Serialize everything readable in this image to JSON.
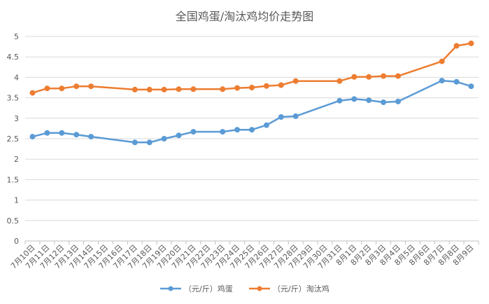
{
  "chart_data": {
    "type": "line",
    "title": "全国鸡蛋/淘汰鸡均价走势图",
    "categories": [
      "7月10日",
      "7月11日",
      "7月12日",
      "7月13日",
      "7月14日",
      "7月15日",
      "7月16日",
      "7月17日",
      "7月18日",
      "7月19日",
      "7月20日",
      "7月21日",
      "7月22日",
      "7月23日",
      "7月24日",
      "7月25日",
      "7月26日",
      "7月27日",
      "7月28日",
      "7月29日",
      "7月30日",
      "7月31日",
      "8月1日",
      "8月2日",
      "8月3日",
      "8月4日",
      "8月5日",
      "8月6日",
      "8月7日",
      "8月8日",
      "8月9日"
    ],
    "series": [
      {
        "name": "（元/斤）鸡蛋",
        "color": "#5b9bd5",
        "values": [
          2.55,
          2.64,
          2.64,
          2.6,
          2.55,
          null,
          null,
          2.41,
          2.41,
          2.5,
          2.58,
          2.67,
          null,
          2.67,
          2.72,
          2.72,
          2.83,
          3.03,
          3.05,
          null,
          null,
          3.43,
          3.47,
          3.44,
          3.39,
          3.41,
          null,
          null,
          3.92,
          3.89,
          3.78
        ]
      },
      {
        "name": "（元/斤）淘汰鸡",
        "color": "#ed7d31",
        "values": [
          3.62,
          3.73,
          3.73,
          3.78,
          3.78,
          null,
          null,
          3.7,
          3.7,
          3.7,
          3.71,
          3.71,
          null,
          3.71,
          3.74,
          3.75,
          3.79,
          3.81,
          3.91,
          null,
          null,
          3.91,
          4.01,
          4.01,
          4.03,
          4.03,
          null,
          null,
          4.39,
          4.77,
          4.83
        ]
      }
    ],
    "ylim": [
      0,
      5
    ],
    "yticks": [
      0,
      0.5,
      1,
      1.5,
      2,
      2.5,
      3,
      3.5,
      4,
      4.5,
      5
    ],
    "grid": true,
    "legend_position": "bottom",
    "xlabel": "",
    "ylabel": ""
  }
}
